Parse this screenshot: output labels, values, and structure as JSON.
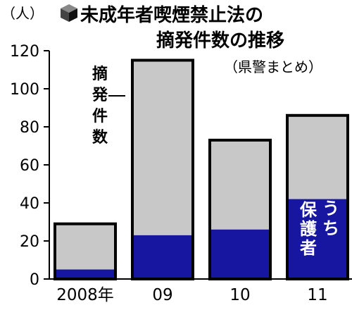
{
  "chart_data": {
    "type": "bar",
    "title_lines": [
      "未成年者喫煙禁止法の",
      "摘発件数の推移"
    ],
    "source": "（県警まとめ）",
    "y_unit": "（人）",
    "categories": [
      "2008年",
      "09",
      "10",
      "11"
    ],
    "series": [
      {
        "name": "摘発件数",
        "values": [
          29,
          115,
          73,
          86
        ]
      },
      {
        "name": "うち保護者",
        "values": [
          5,
          23,
          26,
          42
        ]
      }
    ],
    "ylim": [
      0,
      120
    ],
    "yticks": [
      "0",
      "20",
      "40",
      "60",
      "80",
      "100",
      "120"
    ],
    "grid": false,
    "colors": {
      "total": "#c8c8c8",
      "subset": "#1616a0",
      "outline": "#000000"
    }
  }
}
